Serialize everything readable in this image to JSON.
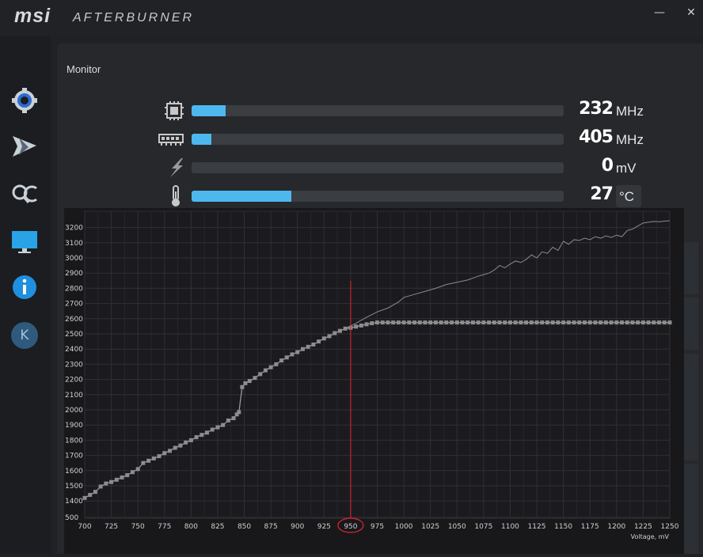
{
  "app": {
    "logo": "msi",
    "product": "AFTERBURNER"
  },
  "window_controls": {
    "minimize": "—",
    "close": "✕"
  },
  "sidebar": {
    "items": [
      {
        "icon": "gear-icon"
      },
      {
        "icon": "airplane-icon"
      },
      {
        "icon": "oc-scanner-icon"
      },
      {
        "icon": "monitor-icon"
      },
      {
        "icon": "info-icon"
      },
      {
        "icon": "k-boost-icon",
        "label": "K"
      }
    ]
  },
  "monitor": {
    "title": "Monitor",
    "rows": [
      {
        "icon": "gpu-chip-icon",
        "value": "232",
        "unit": "MHz",
        "fill": 0.092
      },
      {
        "icon": "memory-icon",
        "value": "405",
        "unit": "MHz",
        "fill": 0.053
      },
      {
        "icon": "lightning-icon",
        "value": "0",
        "unit": "mV",
        "fill": 0.0
      },
      {
        "icon": "thermometer-icon",
        "value": "27",
        "unit": "°C",
        "fill": 0.268
      }
    ]
  },
  "colors": {
    "accent": "#4db8ee",
    "marker": "#e0262b",
    "curve": "#8a8a8a"
  },
  "chart_data": {
    "type": "line",
    "xlabel": "Voltage, mV",
    "ylabel": "",
    "x_ticks": [
      700,
      725,
      750,
      775,
      800,
      825,
      850,
      875,
      900,
      925,
      950,
      975,
      1000,
      1025,
      1050,
      1075,
      1100,
      1125,
      1150,
      1175,
      1200,
      1225,
      1250
    ],
    "y_ticks": [
      500,
      1400,
      1500,
      1600,
      1700,
      1800,
      1900,
      2000,
      2100,
      2200,
      2300,
      2400,
      2500,
      2600,
      2700,
      2800,
      2900,
      3000,
      3100,
      3200
    ],
    "xlim": [
      700,
      1250
    ],
    "ylim": [
      500,
      3250
    ],
    "selected_voltage": "950",
    "series": [
      {
        "x": [
          700,
          705,
          710,
          715,
          720,
          725,
          730,
          735,
          740,
          745,
          750,
          755,
          760,
          765,
          770,
          775,
          780,
          785,
          790,
          795,
          800,
          805,
          810,
          815,
          820,
          825,
          830,
          835,
          840,
          843,
          845,
          848,
          851,
          855,
          860,
          865,
          870,
          875,
          880,
          885,
          890,
          895,
          900,
          905,
          910,
          915,
          920,
          925,
          930,
          935,
          940,
          945,
          950,
          955,
          960,
          965,
          970,
          975,
          980,
          985,
          990,
          995,
          1000,
          1005,
          1010,
          1015,
          1020,
          1025,
          1030,
          1035,
          1040,
          1045,
          1050,
          1055,
          1060,
          1065,
          1070,
          1075,
          1080,
          1085,
          1090,
          1095,
          1100,
          1105,
          1110,
          1115,
          1120,
          1125,
          1130,
          1135,
          1140,
          1145,
          1150,
          1155,
          1160,
          1165,
          1170,
          1175,
          1180,
          1185,
          1190,
          1195,
          1200,
          1205,
          1210,
          1215,
          1220,
          1225,
          1230,
          1235,
          1240,
          1245,
          1250
        ],
        "y": [
          1420,
          1440,
          1460,
          1495,
          1515,
          1525,
          1540,
          1555,
          1570,
          1590,
          1610,
          1650,
          1665,
          1680,
          1695,
          1715,
          1730,
          1750,
          1765,
          1785,
          1800,
          1820,
          1835,
          1850,
          1870,
          1885,
          1900,
          1930,
          1945,
          1970,
          1985,
          2150,
          2175,
          2190,
          2210,
          2235,
          2260,
          2280,
          2300,
          2325,
          2345,
          2365,
          2380,
          2400,
          2415,
          2430,
          2450,
          2470,
          2485,
          2505,
          2520,
          2535,
          2540,
          2548,
          2555,
          2563,
          2570,
          2575,
          2575,
          2575,
          2575,
          2575,
          2575,
          2575,
          2575,
          2575,
          2575,
          2575,
          2575,
          2575,
          2575,
          2575,
          2575,
          2575,
          2575,
          2575,
          2575,
          2575,
          2575,
          2575,
          2575,
          2575,
          2575,
          2575,
          2575,
          2575,
          2575,
          2575,
          2575,
          2575,
          2575,
          2575,
          2575,
          2575,
          2575,
          2575,
          2575,
          2575,
          2575,
          2575,
          2575,
          2575,
          2575,
          2575,
          2575,
          2575,
          2575,
          2575,
          2575,
          2575,
          2575,
          2575,
          2575
        ]
      },
      {
        "x": [
          945,
          955,
          965,
          975,
          985,
          990,
          995,
          1000,
          1010,
          1020,
          1030,
          1040,
          1050,
          1060,
          1070,
          1075,
          1080,
          1085,
          1090,
          1095,
          1100,
          1105,
          1110,
          1115,
          1120,
          1125,
          1130,
          1135,
          1140,
          1145,
          1150,
          1155,
          1160,
          1165,
          1170,
          1175,
          1180,
          1185,
          1190,
          1195,
          1200,
          1205,
          1210,
          1215,
          1220,
          1225,
          1230,
          1235,
          1240,
          1245,
          1250
        ],
        "y": [
          2535,
          2570,
          2610,
          2645,
          2670,
          2690,
          2710,
          2740,
          2760,
          2780,
          2800,
          2825,
          2840,
          2855,
          2880,
          2890,
          2900,
          2920,
          2950,
          2935,
          2960,
          2980,
          2970,
          2990,
          3020,
          3000,
          3040,
          3030,
          3070,
          3050,
          3110,
          3090,
          3120,
          3115,
          3130,
          3120,
          3140,
          3130,
          3145,
          3135,
          3150,
          3140,
          3180,
          3190,
          3210,
          3230,
          3235,
          3240,
          3238,
          3242,
          3245
        ]
      }
    ]
  }
}
